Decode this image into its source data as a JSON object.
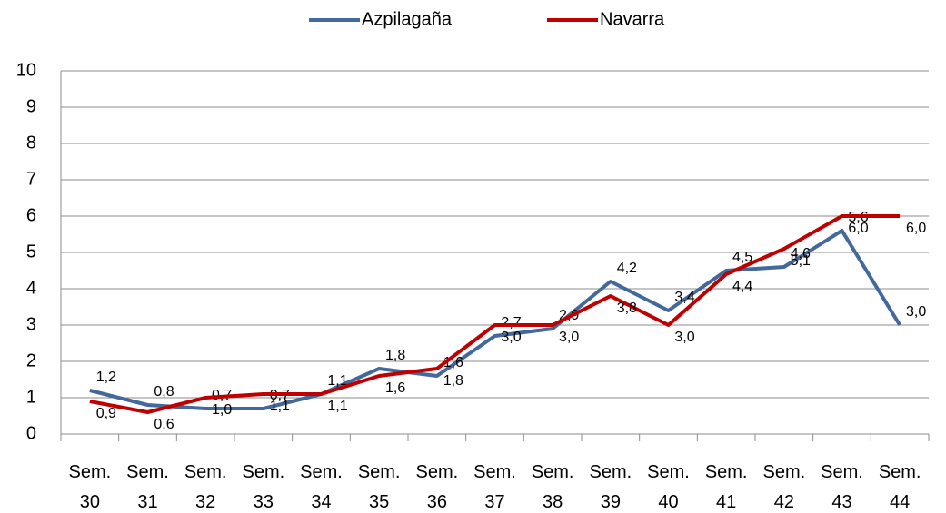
{
  "chart_data": {
    "type": "line",
    "categories": [
      "Sem. 30",
      "Sem. 31",
      "Sem. 32",
      "Sem. 33",
      "Sem. 34",
      "Sem. 35",
      "Sem. 36",
      "Sem. 37",
      "Sem. 38",
      "Sem. 39",
      "Sem. 40",
      "Sem. 41",
      "Sem. 42",
      "Sem. 43",
      "Sem. 44"
    ],
    "series": [
      {
        "name": "Azpilagaña",
        "color": "#43689b",
        "values": [
          1.2,
          0.8,
          0.7,
          0.7,
          1.1,
          1.8,
          1.6,
          2.7,
          2.9,
          4.2,
          3.4,
          4.5,
          4.6,
          5.6,
          3.0
        ],
        "value_labels": [
          "1,2",
          "0,8",
          "0,7",
          "0,7",
          "1,1",
          "1,8",
          "1,6",
          "2,7",
          "2,9",
          "4,2",
          "3,4",
          "4,5",
          "4,6",
          "5,6",
          "3,0"
        ]
      },
      {
        "name": "Navarra",
        "color": "#c00000",
        "values": [
          0.9,
          0.6,
          1.0,
          1.1,
          1.1,
          1.6,
          1.8,
          3.0,
          3.0,
          3.8,
          3.0,
          4.4,
          5.1,
          6.0,
          6.0
        ],
        "value_labels": [
          "0,9",
          "0,6",
          "1,0",
          "1,1",
          "1,1",
          "1,6",
          "1,8",
          "3,0",
          "3,0",
          "3,8",
          "3,0",
          "4,4",
          "5,1",
          "6,0",
          "6,0"
        ]
      }
    ],
    "ylim": [
      0,
      10
    ],
    "yticks": [
      0,
      1,
      2,
      3,
      4,
      5,
      6,
      7,
      8,
      9,
      10
    ],
    "grid": true,
    "legend": "top"
  }
}
